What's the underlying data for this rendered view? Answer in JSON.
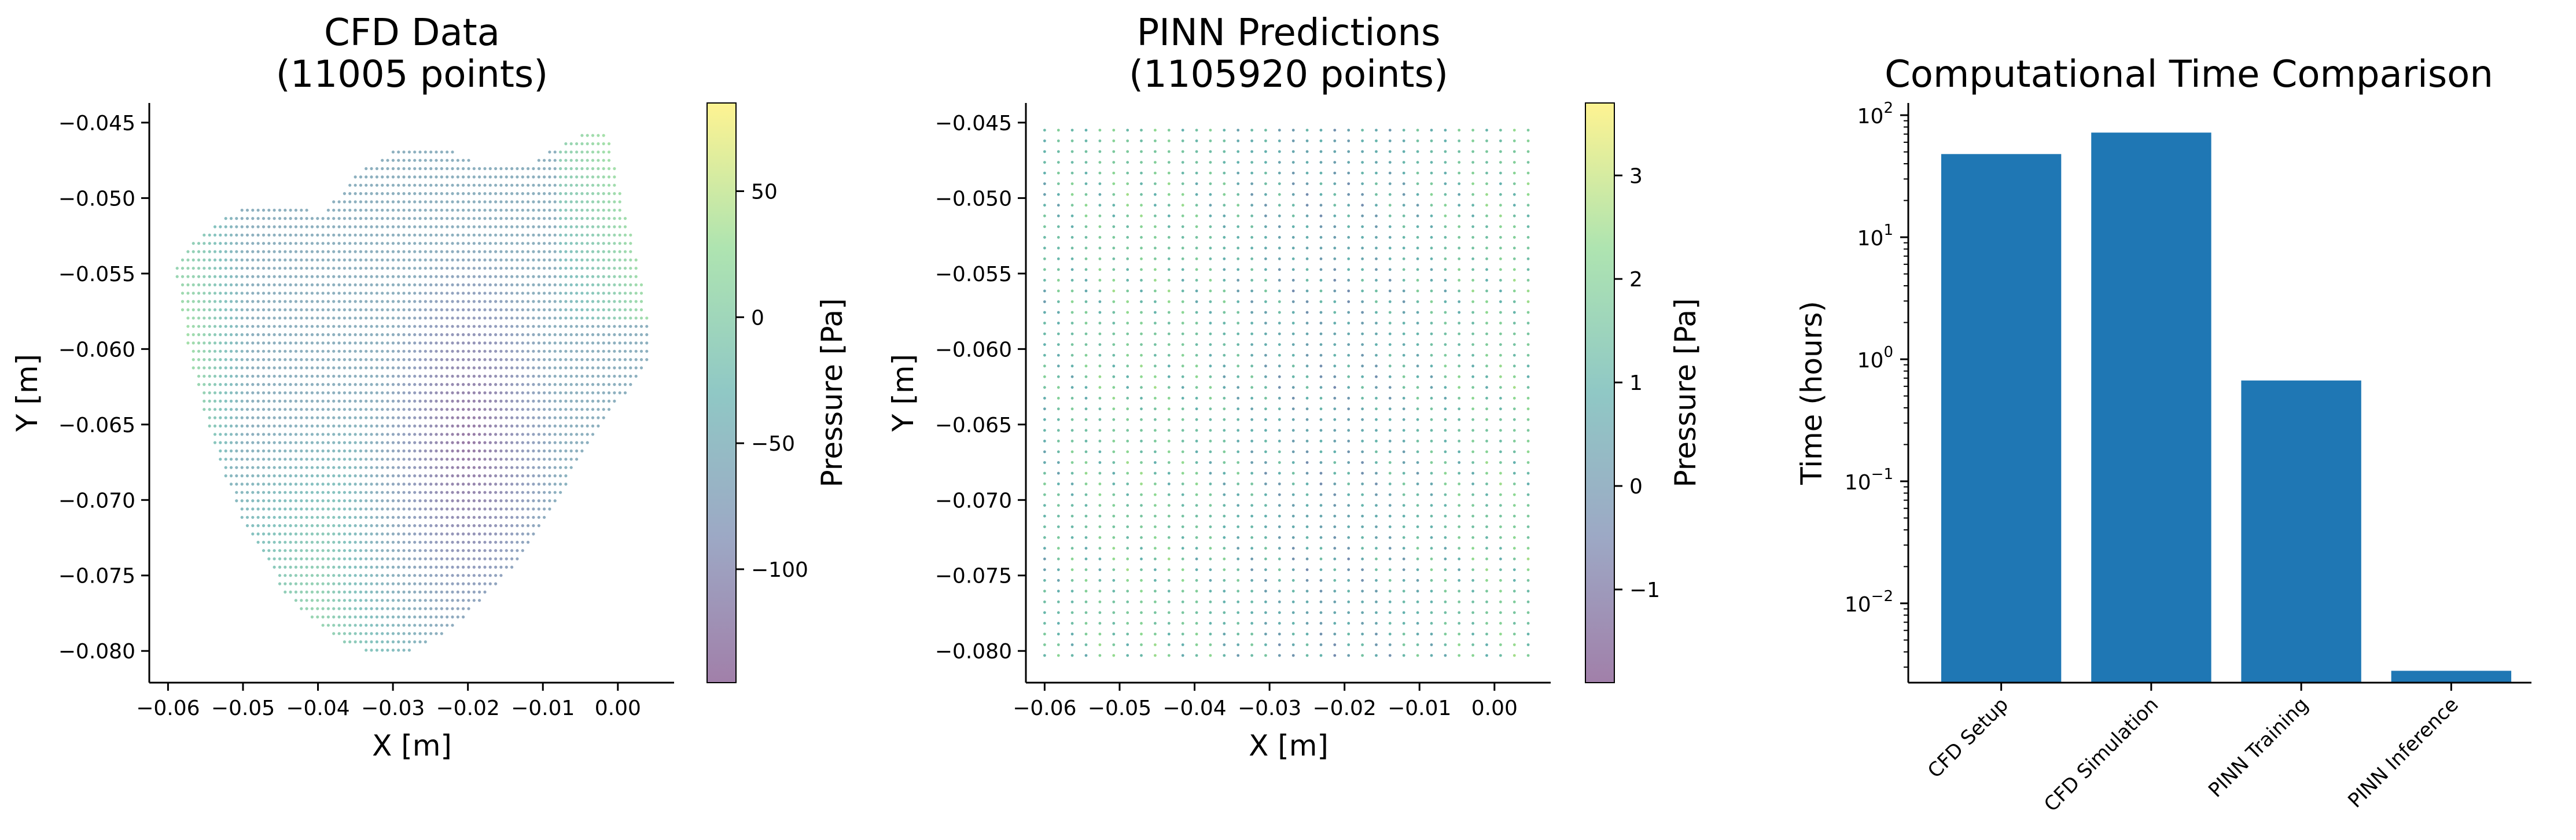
{
  "chart_data": [
    {
      "type": "scatter",
      "title_line1": "CFD Data",
      "title_line2": "(11005 points)",
      "xlabel": "X [m]",
      "ylabel": "Y [m]",
      "xlim": [
        -0.0625,
        0.0075
      ],
      "ylim": [
        -0.0821,
        -0.0437
      ],
      "x_ticks": [
        "−0.06",
        "−0.05",
        "−0.04",
        "−0.03",
        "−0.02",
        "−0.01",
        "0.00"
      ],
      "x_tick_values": [
        -0.06,
        -0.05,
        -0.04,
        -0.03,
        -0.02,
        -0.01,
        0.0
      ],
      "y_ticks": [
        "−0.045",
        "−0.050",
        "−0.055",
        "−0.060",
        "−0.065",
        "−0.070",
        "−0.075",
        "−0.080"
      ],
      "y_tick_values": [
        -0.045,
        -0.05,
        -0.055,
        -0.06,
        -0.065,
        -0.07,
        -0.075,
        -0.08
      ],
      "colorbar": {
        "label": "Pressure [Pa]",
        "range": [
          -145,
          85
        ],
        "ticks": [
          "50",
          "0",
          "−50",
          "−100"
        ],
        "tick_values": [
          50,
          0,
          -50,
          -100
        ],
        "colormap": "viridis",
        "alpha": 0.5
      },
      "point_count": 11005
    },
    {
      "type": "scatter",
      "title_line1": "PINN Predictions",
      "title_line2": "(1105920 points)",
      "xlabel": "X [m]",
      "ylabel": "Y [m]",
      "xlim": [
        -0.0625,
        0.0075
      ],
      "ylim": [
        -0.0821,
        -0.0437
      ],
      "x_ticks": [
        "−0.06",
        "−0.05",
        "−0.04",
        "−0.03",
        "−0.02",
        "−0.01",
        "0.00"
      ],
      "x_tick_values": [
        -0.06,
        -0.05,
        -0.04,
        -0.03,
        -0.02,
        -0.01,
        0.0
      ],
      "y_ticks": [
        "−0.045",
        "−0.050",
        "−0.055",
        "−0.060",
        "−0.065",
        "−0.070",
        "−0.075",
        "−0.080"
      ],
      "y_tick_values": [
        -0.045,
        -0.05,
        -0.055,
        -0.06,
        -0.065,
        -0.07,
        -0.075,
        -0.08
      ],
      "colorbar": {
        "label": "Pressure [Pa]",
        "range": [
          -1.9,
          3.7
        ],
        "ticks": [
          "3",
          "2",
          "1",
          "0",
          "−1"
        ],
        "tick_values": [
          3,
          2,
          1,
          0,
          -1
        ],
        "colormap": "viridis",
        "alpha": 0.5
      },
      "point_count": 1105920,
      "grid_x_range": [
        -0.06,
        0.0045
      ],
      "grid_y_range": [
        -0.0803,
        -0.0455
      ]
    },
    {
      "type": "bar",
      "title": "Computational Time Comparison",
      "ylabel": "Time (hours)",
      "yscale": "log",
      "ylim_log10": [
        -2.65,
        2.1
      ],
      "y_ticks": [
        {
          "base": "10",
          "exp": "2",
          "value": 100
        },
        {
          "base": "10",
          "exp": "1",
          "value": 10
        },
        {
          "base": "10",
          "exp": "0",
          "value": 1
        },
        {
          "base": "10",
          "exp": "−1",
          "value": 0.1
        },
        {
          "base": "10",
          "exp": "−2",
          "value": 0.01
        }
      ],
      "categories": [
        "CFD Setup",
        "CFD Simulation",
        "PINN Training",
        "PINN Inference"
      ],
      "values": [
        48,
        72,
        0.67,
        0.0028
      ],
      "bar_color": "#1f77b4"
    }
  ]
}
